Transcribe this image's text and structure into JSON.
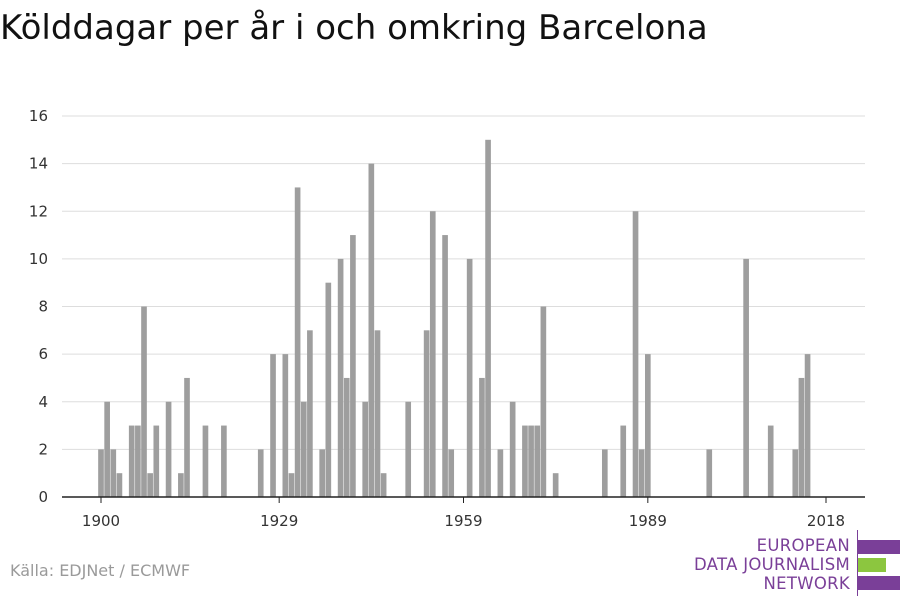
{
  "title": "Kölddagar per år i och omkring Barcelona",
  "source": "Källa: EDJNet / ECMWF",
  "logo": {
    "lines": [
      "EUROPEAN",
      "DATA JOURNALISM",
      "NETWORK"
    ],
    "colors": [
      "#7a3f98",
      "#8cc63f",
      "#7a3f98"
    ]
  },
  "chart_data": {
    "type": "bar",
    "color": "#9e9e9e",
    "grid": true,
    "xlim": [
      1900,
      2018
    ],
    "xticks": [
      1900,
      1929,
      1959,
      1989,
      2018
    ],
    "ylim": [
      0,
      16
    ],
    "yticks": [
      0,
      2,
      4,
      6,
      8,
      10,
      12,
      14,
      16
    ],
    "x": [
      1900,
      1901,
      1902,
      1903,
      1904,
      1905,
      1906,
      1907,
      1908,
      1909,
      1910,
      1911,
      1912,
      1913,
      1914,
      1915,
      1916,
      1917,
      1918,
      1919,
      1920,
      1921,
      1922,
      1923,
      1924,
      1925,
      1926,
      1927,
      1928,
      1929,
      1930,
      1931,
      1932,
      1933,
      1934,
      1935,
      1936,
      1937,
      1938,
      1939,
      1940,
      1941,
      1942,
      1943,
      1944,
      1945,
      1946,
      1947,
      1948,
      1949,
      1950,
      1951,
      1952,
      1953,
      1954,
      1955,
      1956,
      1957,
      1958,
      1959,
      1960,
      1961,
      1962,
      1963,
      1964,
      1965,
      1966,
      1967,
      1968,
      1969,
      1970,
      1971,
      1972,
      1973,
      1974,
      1975,
      1976,
      1977,
      1978,
      1979,
      1980,
      1981,
      1982,
      1983,
      1984,
      1985,
      1986,
      1987,
      1988,
      1989,
      1990,
      1991,
      1992,
      1993,
      1994,
      1995,
      1996,
      1997,
      1998,
      1999,
      2000,
      2001,
      2002,
      2003,
      2004,
      2005,
      2006,
      2007,
      2008,
      2009,
      2010,
      2011,
      2012,
      2013,
      2014,
      2015,
      2016,
      2017,
      2018
    ],
    "values": [
      2,
      4,
      2,
      1,
      0,
      3,
      3,
      8,
      1,
      3,
      0,
      4,
      0,
      1,
      5,
      0,
      0,
      3,
      0,
      0,
      3,
      0,
      0,
      0,
      0,
      0,
      2,
      0,
      6,
      0,
      6,
      1,
      13,
      4,
      7,
      0,
      2,
      9,
      0,
      10,
      5,
      11,
      0,
      4,
      14,
      7,
      1,
      0,
      0,
      0,
      4,
      0,
      0,
      7,
      12,
      0,
      11,
      2,
      0,
      0,
      10,
      0,
      5,
      15,
      0,
      2,
      0,
      4,
      0,
      3,
      3,
      3,
      8,
      0,
      1,
      0,
      0,
      0,
      0,
      0,
      0,
      0,
      2,
      0,
      0,
      3,
      0,
      12,
      2,
      6,
      0,
      0,
      0,
      0,
      0,
      0,
      0,
      0,
      0,
      2,
      0,
      0,
      0,
      0,
      0,
      10,
      0,
      0,
      0,
      3,
      0,
      0,
      0,
      2,
      5,
      6,
      0,
      0,
      0
    ]
  }
}
